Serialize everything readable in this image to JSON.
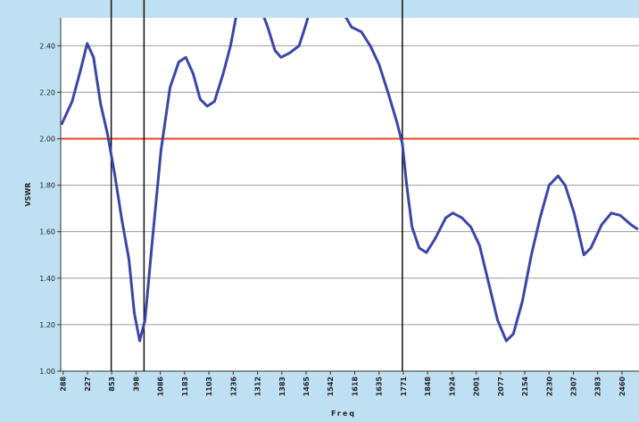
{
  "chart_data": {
    "type": "line",
    "x_label": "Freq",
    "y_label": "VSWR",
    "xlim": [
      -0.1,
      23.7
    ],
    "ylim": [
      1.0,
      2.52
    ],
    "yticks": [
      {
        "value": 1.0,
        "label": "1.00"
      },
      {
        "value": 1.2,
        "label": "1.20"
      },
      {
        "value": 1.4,
        "label": "1.40"
      },
      {
        "value": 1.6,
        "label": "1.60"
      },
      {
        "value": 1.8,
        "label": "1.80"
      },
      {
        "value": 2.0,
        "label": "2.00"
      },
      {
        "value": 2.2,
        "label": "2.20"
      },
      {
        "value": 2.4,
        "label": "2.40"
      }
    ],
    "xticks": [
      {
        "value": 0,
        "label": "288"
      },
      {
        "value": 1,
        "label": "227"
      },
      {
        "value": 2,
        "label": "853"
      },
      {
        "value": 3,
        "label": "398"
      },
      {
        "value": 4,
        "label": "1086"
      },
      {
        "value": 5,
        "label": "1183"
      },
      {
        "value": 6,
        "label": "1103"
      },
      {
        "value": 7,
        "label": "1236"
      },
      {
        "value": 8,
        "label": "1312"
      },
      {
        "value": 9,
        "label": "1383"
      },
      {
        "value": 10,
        "label": "1465"
      },
      {
        "value": 11,
        "label": "1542"
      },
      {
        "value": 12,
        "label": "1618"
      },
      {
        "value": 13,
        "label": "1635"
      },
      {
        "value": 14,
        "label": "1771"
      },
      {
        "value": 15,
        "label": "1848"
      },
      {
        "value": 16,
        "label": "1924"
      },
      {
        "value": 17,
        "label": "2001"
      },
      {
        "value": 18,
        "label": "2077"
      },
      {
        "value": 19,
        "label": "2154"
      },
      {
        "value": 20,
        "label": "2230"
      },
      {
        "value": 21,
        "label": "2307"
      },
      {
        "value": 22,
        "label": "2383"
      },
      {
        "value": 23,
        "label": "2460"
      }
    ],
    "grid": true,
    "vlines": [
      1.98,
      3.33,
      13.96
    ],
    "hlines": [
      {
        "value": 2.0,
        "color": "#e8402a"
      }
    ],
    "series": [
      {
        "color": "#3a46a8",
        "x": [
          -0.07,
          0.37,
          0.73,
          0.99,
          1.25,
          1.54,
          1.83,
          2.12,
          2.42,
          2.71,
          2.93,
          3.15,
          3.37,
          3.66,
          4.03,
          4.4,
          4.76,
          5.05,
          5.35,
          5.64,
          5.93,
          6.23,
          6.59,
          6.89,
          7.11,
          7.4,
          8.06,
          8.42,
          8.72,
          8.97,
          9.34,
          9.71,
          9.96,
          10.18,
          10.99,
          11.65,
          11.87,
          12.27,
          12.64,
          13.0,
          13.37,
          13.74,
          13.96,
          14.14,
          14.36,
          14.65,
          14.95,
          15.31,
          15.75,
          16.04,
          16.41,
          16.78,
          17.14,
          17.51,
          17.88,
          18.24,
          18.53,
          18.9,
          19.27,
          19.63,
          20.0,
          20.37,
          20.66,
          21.03,
          21.43,
          21.72,
          22.16,
          22.56,
          22.93,
          23.37,
          23.66
        ],
        "values": [
          2.06,
          2.16,
          2.3,
          2.41,
          2.35,
          2.15,
          2.02,
          1.85,
          1.65,
          1.48,
          1.25,
          1.13,
          1.22,
          1.55,
          1.95,
          2.22,
          2.33,
          2.35,
          2.28,
          2.17,
          2.14,
          2.16,
          2.28,
          2.4,
          2.52,
          2.62,
          2.58,
          2.48,
          2.38,
          2.35,
          2.37,
          2.4,
          2.48,
          2.56,
          2.6,
          2.52,
          2.48,
          2.46,
          2.4,
          2.32,
          2.2,
          2.07,
          1.98,
          1.8,
          1.62,
          1.53,
          1.51,
          1.57,
          1.66,
          1.68,
          1.66,
          1.62,
          1.54,
          1.38,
          1.22,
          1.13,
          1.16,
          1.3,
          1.5,
          1.66,
          1.8,
          1.84,
          1.8,
          1.68,
          1.5,
          1.53,
          1.63,
          1.68,
          1.67,
          1.63,
          1.61
        ]
      }
    ]
  }
}
